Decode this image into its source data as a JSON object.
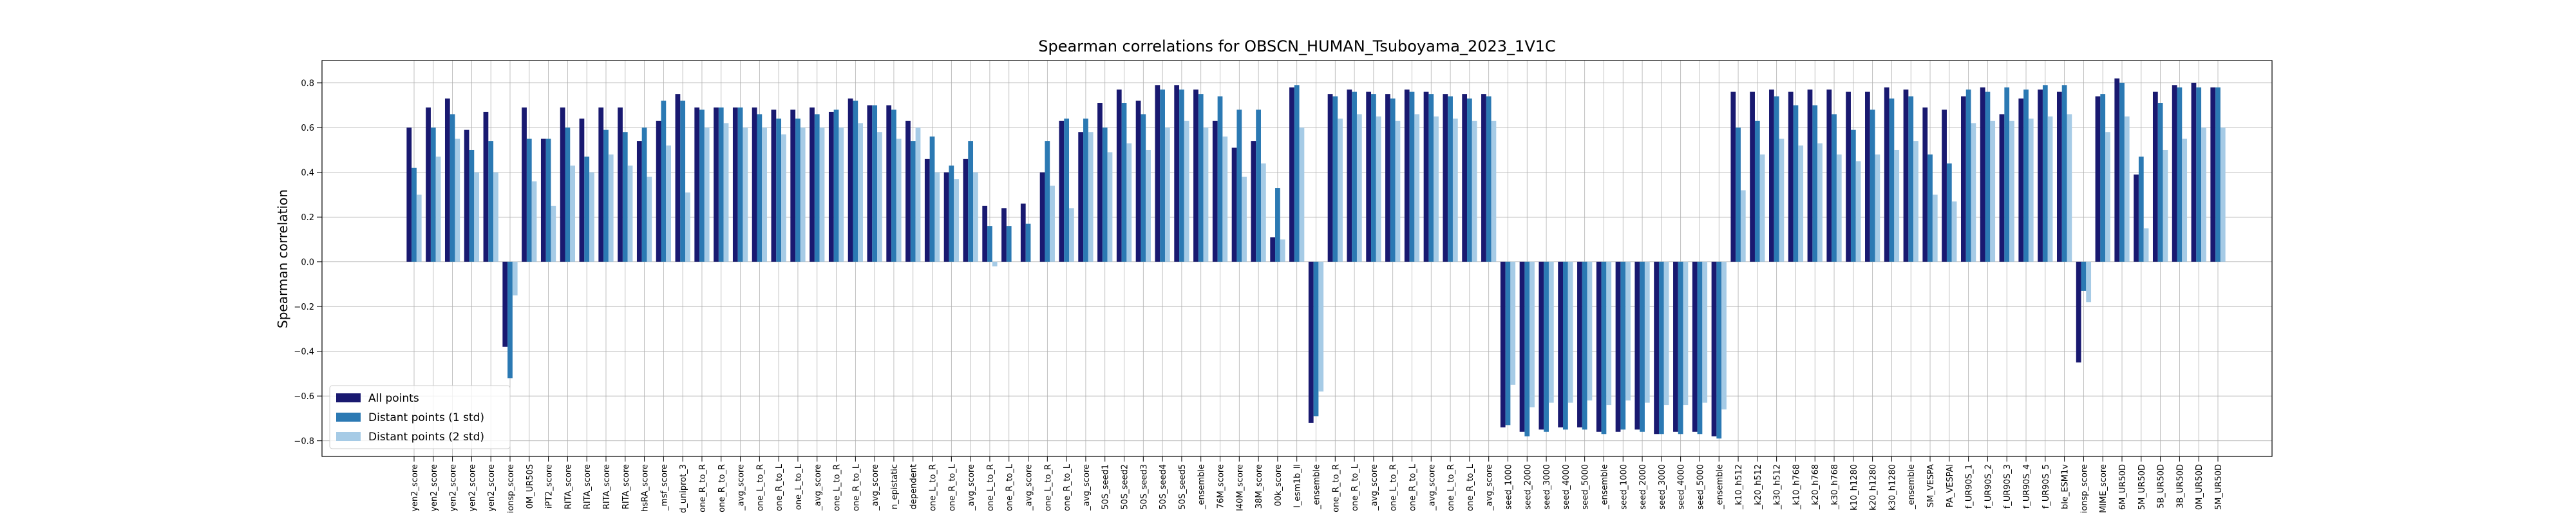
{
  "chart_data": {
    "type": "bar",
    "title": "Spearman correlations for OBSCN_HUMAN_Tsuboyama_2023_1V1C",
    "ylabel": "Spearman correlation",
    "categories": [
      "yen2_score",
      "yen2_score",
      "yen2_score",
      "yen2_score",
      "yen2_score",
      "ionsp_score",
      "0M_UR50S",
      "iPT2_score",
      "RITA_score",
      "RITA_score",
      "RITA_score",
      "RITA_score",
      "hsRA_score",
      "_msf_score",
      "d_uniprot_3",
      "one_R_to_R",
      "one_R_to_R",
      "_avg_score",
      "one_L_to_R",
      "one_R_to_L",
      "one_L_to_L",
      "_avg_score",
      "one_L_to_R",
      "one_R_to_L",
      "_avg_score",
      "n_epistatic",
      "dependent",
      "one_L_to_R",
      "one_R_to_L",
      "_avg_score",
      "one_L_to_R",
      "one_R_to_L",
      "_avg_score",
      "one_L_to_R",
      "one_R_to_L",
      "_avg_score",
      "50S_seed1",
      "50S_seed2",
      "50S_seed3",
      "50S_seed4",
      "50S_seed5",
      "_ensemble",
      "76M_score",
      "l40M_score",
      "38M_score",
      "00k_score",
      "l_esm1b_ll",
      "_ensemble",
      "one_R_to_R",
      "one_R_to_L",
      "_avg_score",
      "one_L_to_R",
      "one_R_to_L",
      "_avg_score",
      "one_L_to_R",
      "one_R_to_L",
      "_avg_score",
      "seed_1000",
      "seed_2000",
      "seed_3000",
      "seed_4000",
      "seed_5000",
      "_ensemble",
      "seed_1000",
      "seed_2000",
      "seed_3000",
      "seed_4000",
      "seed_5000",
      "_ensemble",
      "_k10_h512",
      "_k20_h512",
      "_k30_h512",
      "_k10_h768",
      "_k20_h768",
      "_k30_h768",
      "k10_h1280",
      "k20_h1280",
      "k30_h1280",
      "_ensemble",
      "SM_VESPA",
      "PA_VESPAl",
      "f_UR90S_1",
      "f_UR90S_2",
      "f_UR90S_3",
      "f_UR90S_4",
      "f_UR90S_5",
      "ble_ESM1v",
      "ionsp_score",
      "MIME_score",
      "6M_UR50D",
      "5M_UR50D",
      "5B_UR50D",
      "3B_UR50D",
      "0M_UR50D",
      "5M_UR50D"
    ],
    "series": [
      {
        "name": "All points",
        "color": "#191970",
        "values": [
          0.6,
          0.69,
          0.73,
          0.59,
          0.67,
          -0.38,
          0.69,
          0.55,
          0.69,
          0.64,
          0.69,
          0.69,
          0.54,
          0.63,
          0.75,
          0.69,
          0.69,
          0.69,
          0.69,
          0.68,
          0.68,
          0.69,
          0.67,
          0.73,
          0.7,
          0.7,
          0.63,
          0.46,
          0.4,
          0.46,
          0.25,
          0.24,
          0.26,
          0.4,
          0.63,
          0.58,
          0.71,
          0.77,
          0.72,
          0.79,
          0.79,
          0.77,
          0.63,
          0.51,
          0.54,
          0.11,
          0.78,
          -0.72,
          0.75,
          0.77,
          0.76,
          0.75,
          0.77,
          0.76,
          0.75,
          0.75,
          0.75,
          -0.74,
          -0.76,
          -0.75,
          -0.74,
          -0.74,
          -0.76,
          -0.76,
          -0.75,
          -0.77,
          -0.76,
          -0.76,
          -0.78,
          0.76,
          0.76,
          0.77,
          0.76,
          0.77,
          0.77,
          0.76,
          0.76,
          0.78,
          0.77,
          0.69,
          0.68,
          0.74,
          0.78,
          0.66,
          0.73,
          0.77,
          0.76,
          -0.45,
          0.74,
          0.82,
          0.39,
          0.76,
          0.79,
          0.8,
          0.78
        ]
      },
      {
        "name": "Distant points (1 std)",
        "color": "#2b79b3",
        "values": [
          0.42,
          0.6,
          0.66,
          0.5,
          0.54,
          -0.52,
          0.55,
          0.55,
          0.6,
          0.47,
          0.59,
          0.58,
          0.6,
          0.72,
          0.72,
          0.68,
          0.69,
          0.69,
          0.66,
          0.64,
          0.64,
          0.66,
          0.68,
          0.72,
          0.7,
          0.68,
          0.54,
          0.56,
          0.43,
          0.54,
          0.16,
          0.16,
          0.17,
          0.54,
          0.64,
          0.64,
          0.6,
          0.71,
          0.66,
          0.77,
          0.77,
          0.75,
          0.74,
          0.68,
          0.68,
          0.33,
          0.79,
          -0.69,
          0.74,
          0.76,
          0.75,
          0.73,
          0.76,
          0.75,
          0.74,
          0.73,
          0.74,
          -0.73,
          -0.78,
          -0.76,
          -0.75,
          -0.75,
          -0.77,
          -0.75,
          -0.76,
          -0.77,
          -0.77,
          -0.77,
          -0.79,
          0.6,
          0.63,
          0.74,
          0.7,
          0.7,
          0.66,
          0.59,
          0.68,
          0.73,
          0.74,
          0.48,
          0.44,
          0.77,
          0.76,
          0.78,
          0.77,
          0.79,
          0.79,
          -0.13,
          0.75,
          0.8,
          0.47,
          0.71,
          0.78,
          0.78,
          0.78
        ]
      },
      {
        "name": "Distant points (2 std)",
        "color": "#a6cbe6",
        "values": [
          0.3,
          0.47,
          0.55,
          0.4,
          0.4,
          -0.15,
          0.36,
          0.25,
          0.43,
          0.4,
          0.48,
          0.43,
          0.38,
          0.52,
          0.31,
          0.6,
          0.62,
          0.6,
          0.6,
          0.57,
          0.6,
          0.6,
          0.6,
          0.62,
          0.58,
          0.55,
          0.6,
          0.4,
          0.37,
          0.4,
          -0.02,
          0.0,
          0.0,
          0.34,
          0.24,
          0.58,
          0.49,
          0.53,
          0.5,
          0.6,
          0.63,
          0.6,
          0.56,
          0.38,
          0.44,
          0.1,
          0.6,
          -0.58,
          0.64,
          0.66,
          0.65,
          0.63,
          0.66,
          0.65,
          0.64,
          0.63,
          0.63,
          -0.55,
          -0.65,
          -0.63,
          -0.63,
          -0.62,
          -0.64,
          -0.62,
          -0.63,
          -0.64,
          -0.64,
          -0.63,
          -0.66,
          0.32,
          0.48,
          0.55,
          0.52,
          0.53,
          0.48,
          0.45,
          0.48,
          0.5,
          0.54,
          0.3,
          0.27,
          0.62,
          0.63,
          0.63,
          0.64,
          0.65,
          0.66,
          -0.18,
          0.58,
          0.65,
          0.15,
          0.5,
          0.55,
          0.6,
          0.6
        ]
      }
    ],
    "ylim": [
      -0.87,
      0.9
    ],
    "yticks": [
      {
        "value": -0.8,
        "label": "−0.8"
      },
      {
        "value": -0.6,
        "label": "−0.6"
      },
      {
        "value": -0.4,
        "label": "−0.4"
      },
      {
        "value": -0.2,
        "label": "−0.2"
      },
      {
        "value": 0,
        "label": "0.0"
      },
      0.2,
      0.4,
      0.6,
      0.8
    ],
    "grid": true,
    "legend": "lower left"
  }
}
